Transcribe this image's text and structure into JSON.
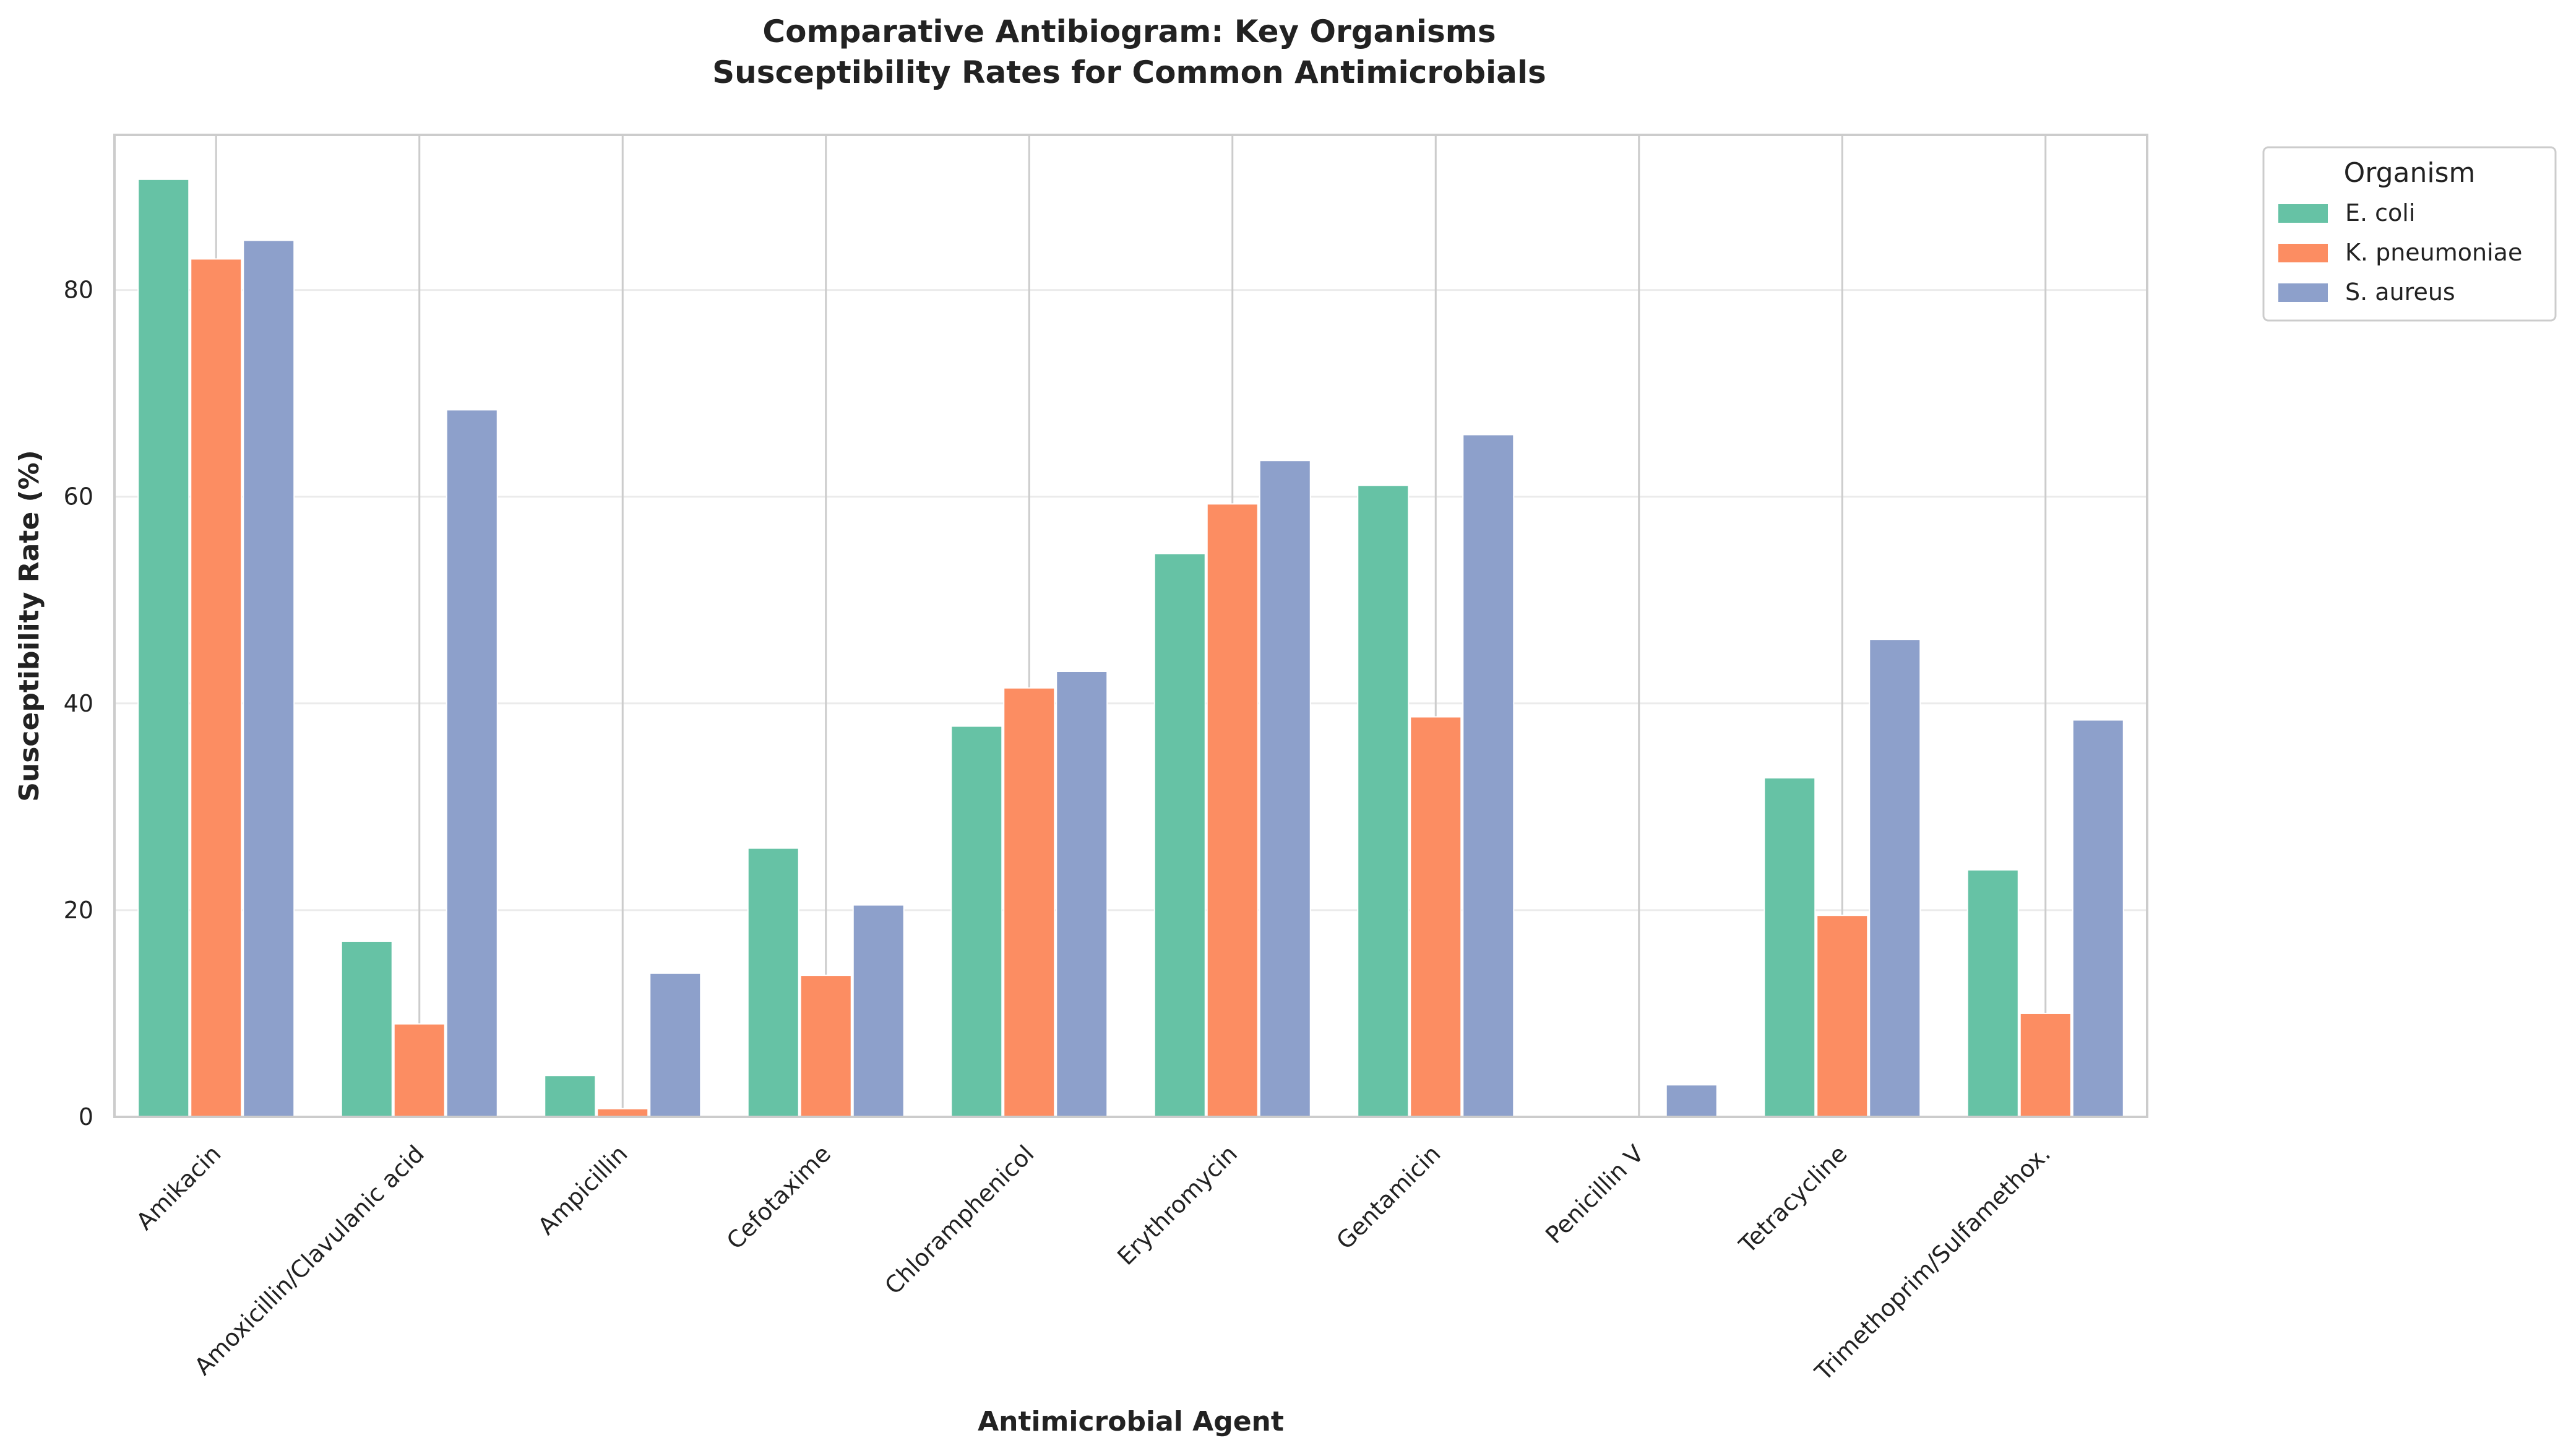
{
  "chart_data": {
    "type": "bar",
    "title": [
      "Comparative Antibiogram: Key Organisms",
      "Susceptibility Rates for Common Antimicrobials"
    ],
    "xlabel": "Antimicrobial Agent",
    "ylabel": "Susceptibility Rate (%)",
    "ylim": [
      0,
      95
    ],
    "yticks": [
      0,
      20,
      40,
      60,
      80
    ],
    "grid": true,
    "legend_title": "Organism",
    "legend_position": "outside top-right",
    "categories": [
      "Amikacin",
      "Amoxicillin/Clavulanic acid",
      "Ampicillin",
      "Cefotaxime",
      "Chloramphenicol",
      "Erythromycin",
      "Gentamicin",
      "Penicillin V",
      "Tetracycline",
      "Trimethoprim/Sulfamethox."
    ],
    "series": [
      {
        "name": "E. coli",
        "color": "#66c2a5",
        "values": [
          90.7,
          17.0,
          4.0,
          26.0,
          37.8,
          54.5,
          61.1,
          0.0,
          32.8,
          23.9
        ]
      },
      {
        "name": "K. pneumoniae",
        "color": "#fc8d62",
        "values": [
          83.0,
          9.0,
          0.8,
          13.7,
          41.5,
          59.3,
          38.7,
          0.0,
          19.5,
          10.0
        ]
      },
      {
        "name": "S. aureus",
        "color": "#8da0cb",
        "values": [
          84.8,
          68.4,
          13.9,
          20.5,
          43.1,
          63.5,
          66.0,
          3.1,
          46.2,
          38.4
        ]
      }
    ]
  }
}
